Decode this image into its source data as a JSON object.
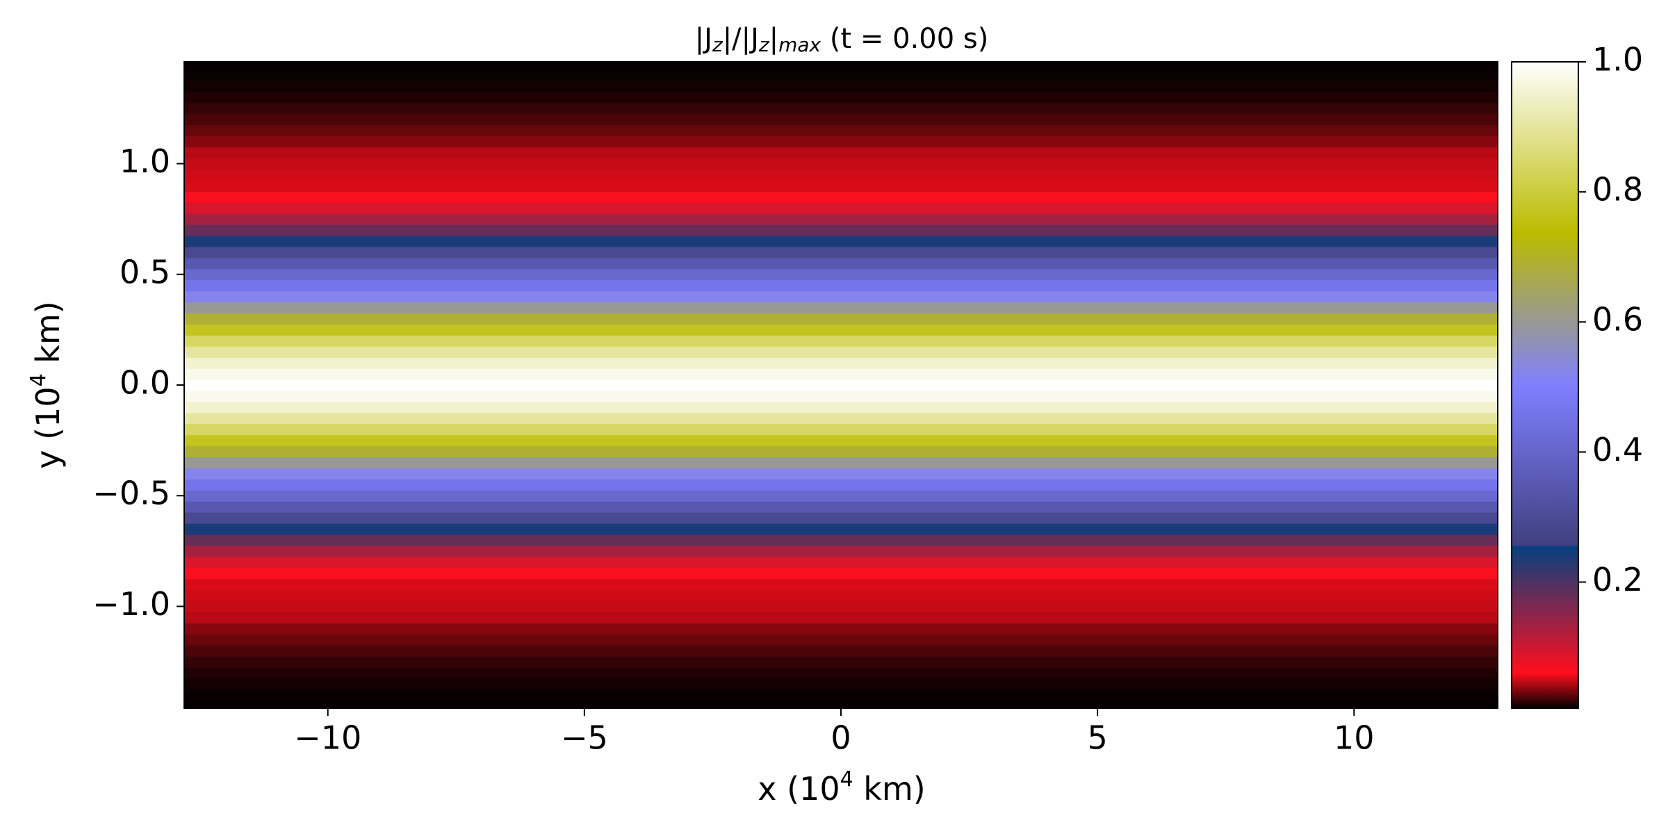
{
  "chart_data": {
    "type": "heatmap",
    "title": [
      "|J",
      "z",
      "|/|J",
      "z",
      "|",
      "max",
      " (t = 0.00 s)"
    ],
    "x_label": [
      "x (10",
      "4",
      " km)"
    ],
    "y_label": [
      "y (10",
      "4",
      " km)"
    ],
    "colormap": "gist_stern",
    "xlim": [
      -12.8,
      12.8
    ],
    "ylim": [
      -1.46,
      1.46
    ],
    "clim": [
      0.006,
      1.0
    ],
    "xticks": [
      {
        "value": -10,
        "label": "−10"
      },
      {
        "value": -5,
        "label": "−5"
      },
      0,
      5,
      10
    ],
    "yticks": [
      {
        "value": -1.0,
        "label": "−1.0"
      },
      {
        "value": -0.5,
        "label": "−0.5"
      },
      {
        "value": 0.0,
        "label": "0.0"
      },
      {
        "value": 0.5,
        "label": "0.5"
      },
      {
        "value": 1.0,
        "label": "1.0"
      }
    ],
    "cticks": [
      0.2,
      0.4,
      0.6,
      0.8,
      {
        "value": 1.0,
        "label": "1.0"
      }
    ],
    "y": [
      -1.45,
      -1.4,
      -1.35,
      -1.3,
      -1.25,
      -1.2,
      -1.15,
      -1.1,
      -1.05,
      -1.0,
      -0.95,
      -0.9,
      -0.85,
      -0.8,
      -0.75,
      -0.7,
      -0.65,
      -0.6,
      -0.55,
      -0.5,
      -0.45,
      -0.4,
      -0.35,
      -0.3,
      -0.25,
      -0.2,
      -0.15,
      -0.1,
      -0.05,
      0.0,
      0.05,
      0.1,
      0.15,
      0.2,
      0.25,
      0.3,
      0.35,
      0.4,
      0.45,
      0.5,
      0.55,
      0.6,
      0.65,
      0.7,
      0.75,
      0.8,
      0.85,
      0.9,
      0.95,
      1.0,
      1.05,
      1.1,
      1.15,
      1.2,
      1.25,
      1.3,
      1.35,
      1.4,
      1.45
    ],
    "values": [
      0.007,
      0.008,
      0.01,
      0.013,
      0.017,
      0.022,
      0.028,
      0.035,
      0.045,
      0.048,
      0.05,
      0.052,
      0.065,
      0.09,
      0.13,
      0.18,
      0.24,
      0.29,
      0.35,
      0.41,
      0.46,
      0.52,
      0.6,
      0.69,
      0.77,
      0.84,
      0.9,
      0.95,
      0.98,
      1.0,
      0.98,
      0.95,
      0.9,
      0.84,
      0.77,
      0.69,
      0.6,
      0.52,
      0.46,
      0.41,
      0.35,
      0.29,
      0.24,
      0.18,
      0.13,
      0.09,
      0.065,
      0.052,
      0.05,
      0.048,
      0.045,
      0.035,
      0.028,
      0.022,
      0.017,
      0.013,
      0.01,
      0.008,
      0.007
    ]
  }
}
